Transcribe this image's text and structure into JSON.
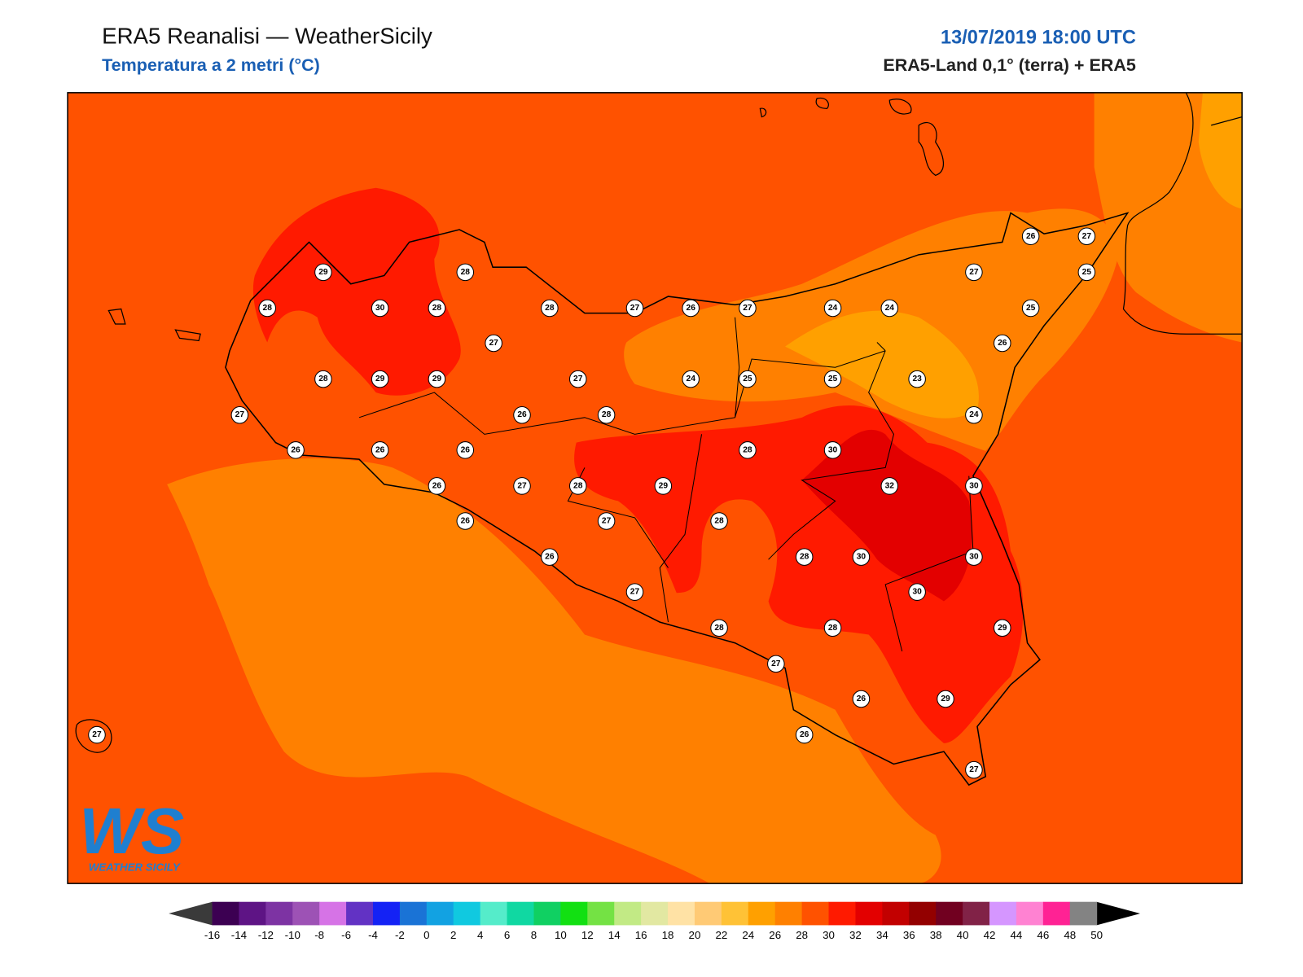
{
  "header": {
    "title": "ERA5 Reanalisi — WeatherSicily",
    "subtitle": "Temperatura a 2 metri (°C)",
    "datetime": "13/07/2019 18:00 UTC",
    "source": "ERA5-Land 0,1° (terra) + ERA5"
  },
  "stations": [
    29,
    28,
    28,
    30,
    28,
    28,
    27,
    26,
    27,
    24,
    24,
    26,
    27,
    27,
    25,
    25,
    27,
    26,
    28,
    29,
    29,
    27,
    24,
    25,
    25,
    23,
    27,
    26,
    28,
    24,
    26,
    26,
    26,
    28,
    30,
    26,
    27,
    28,
    29,
    32,
    30,
    26,
    27,
    28,
    26,
    28,
    30,
    30,
    27,
    30,
    28,
    28,
    29,
    27,
    26,
    29,
    26,
    27,
    27
  ],
  "logo": {
    "text": "WS",
    "caption": "WEATHER SICILY"
  },
  "colorbar": {
    "ticks": [
      -16,
      -14,
      -12,
      -10,
      -8,
      -6,
      -4,
      -2,
      0,
      2,
      4,
      6,
      8,
      10,
      12,
      14,
      16,
      18,
      20,
      22,
      24,
      26,
      28,
      30,
      32,
      34,
      36,
      38,
      40,
      42,
      44,
      46,
      48,
      50
    ],
    "colors": [
      "#3c0052",
      "#5e1485",
      "#7d33a3",
      "#9d52b5",
      "#d673e6",
      "#6232c4",
      "#1422f5",
      "#1a73d6",
      "#12a2e2",
      "#10c9e0",
      "#55ecca",
      "#10d8a2",
      "#10d062",
      "#12e012",
      "#74e244",
      "#c2ea85",
      "#e2e8a2",
      "#ffe2a5",
      "#ffca75",
      "#ffc236",
      "#ffa000",
      "#ff8000",
      "#ff5200",
      "#ff1a00",
      "#e30000",
      "#c20000",
      "#930000",
      "#710020",
      "#812247",
      "#d596ff",
      "#ff82d2",
      "#ff2294",
      "#838383",
      "#3a3a3a"
    ],
    "under": "#3a3a3a",
    "over": "#000000"
  }
}
